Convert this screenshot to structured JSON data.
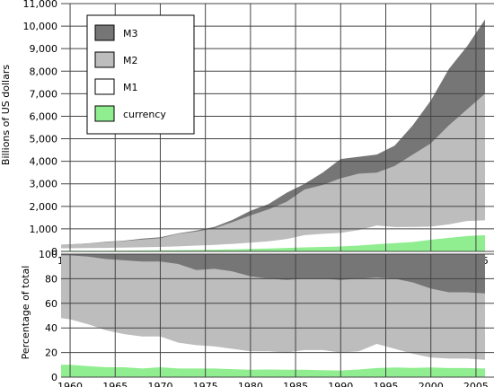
{
  "colors": {
    "M3": "#767676",
    "M2": "#bdbdbd",
    "M1": "#ffffff",
    "currency": "#90ee90",
    "grid": "#444444",
    "axis": "#000000"
  },
  "chart_data": [
    {
      "type": "area",
      "ylabel": "Billions of US dollars",
      "xlim": [
        1959,
        2007
      ],
      "ylim": [
        0,
        11000
      ],
      "yticks": [
        "0",
        "1,000",
        "2,000",
        "3,000",
        "4,000",
        "5,000",
        "6,000",
        "7,000",
        "8,000",
        "9,000",
        "10,000",
        "11,000"
      ],
      "xticks": [
        "1960",
        "1965",
        "1970",
        "1975",
        "1980",
        "1985",
        "1990",
        "1995",
        "2000",
        "2005"
      ],
      "grid": true,
      "legend_position": "top-left",
      "x": [
        1959,
        1960,
        1962,
        1964,
        1966,
        1968,
        1970,
        1972,
        1974,
        1976,
        1978,
        1980,
        1982,
        1984,
        1986,
        1988,
        1990,
        1992,
        1994,
        1996,
        1998,
        2000,
        2002,
        2004,
        2006
      ],
      "series": [
        {
          "name": "M3",
          "values": [
            300,
            315,
            360,
            425,
            480,
            570,
            630,
            800,
            930,
            1090,
            1400,
            1800,
            2100,
            2600,
            3000,
            3500,
            4100,
            4200,
            4300,
            4700,
            5600,
            6700,
            8100,
            9100,
            10300
          ]
        },
        {
          "name": "M2",
          "values": [
            297,
            313,
            355,
            410,
            460,
            530,
            590,
            780,
            880,
            1030,
            1300,
            1600,
            1870,
            2200,
            2750,
            2950,
            3250,
            3450,
            3500,
            3800,
            4300,
            4800,
            5600,
            6300,
            7000
          ]
        },
        {
          "name": "M1",
          "values": [
            140,
            141,
            146,
            155,
            170,
            185,
            200,
            225,
            260,
            290,
            335,
            390,
            450,
            550,
            720,
            780,
            820,
            950,
            1150,
            1080,
            1090,
            1100,
            1200,
            1350,
            1380
          ]
        },
        {
          "name": "currency",
          "values": [
            29,
            30,
            31,
            33,
            37,
            42,
            47,
            55,
            65,
            77,
            90,
            110,
            130,
            155,
            180,
            200,
            220,
            260,
            320,
            370,
            420,
            520,
            600,
            680,
            720
          ]
        }
      ]
    },
    {
      "type": "area",
      "ylabel": "Percentage of total",
      "xlim": [
        1959,
        2007
      ],
      "ylim": [
        0,
        100
      ],
      "yticks": [
        "0",
        "20",
        "40",
        "60",
        "80",
        "100"
      ],
      "xticks": [
        "1960",
        "1965",
        "1970",
        "1975",
        "1980",
        "1985",
        "1990",
        "1995",
        "2000",
        "2005"
      ],
      "grid": true,
      "x": [
        1959,
        1960,
        1962,
        1964,
        1966,
        1968,
        1970,
        1972,
        1974,
        1976,
        1978,
        1980,
        1982,
        1984,
        1986,
        1988,
        1990,
        1992,
        1994,
        1996,
        1998,
        2000,
        2002,
        2004,
        2006
      ],
      "series": [
        {
          "name": "M3",
          "values": [
            100,
            100,
            100,
            100,
            100,
            100,
            100,
            100,
            100,
            100,
            100,
            100,
            100,
            100,
            100,
            100,
            100,
            100,
            100,
            100,
            100,
            100,
            100,
            100,
            100
          ]
        },
        {
          "name": "M2",
          "values": [
            99,
            99,
            98,
            96,
            95,
            94,
            94,
            92,
            87,
            88,
            86,
            82,
            80,
            79,
            80,
            80,
            79,
            80,
            81,
            80,
            77,
            72,
            69,
            69,
            68
          ]
        },
        {
          "name": "M1",
          "values": [
            48,
            47,
            43,
            38,
            35,
            33,
            33,
            28,
            26,
            25,
            23,
            21,
            21,
            20,
            22,
            22,
            20,
            21,
            27,
            23,
            19,
            16,
            15,
            15,
            14
          ]
        },
        {
          "name": "currency",
          "values": [
            10,
            10,
            9,
            8,
            8,
            7,
            8,
            7,
            7,
            7,
            6.5,
            6,
            6.2,
            6,
            6,
            5.7,
            5.4,
            6.2,
            7.4,
            7.9,
            7.5,
            7.8,
            7.4,
            7.4,
            7.0
          ]
        }
      ]
    }
  ]
}
